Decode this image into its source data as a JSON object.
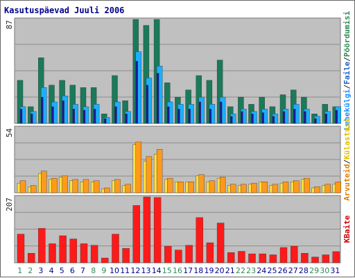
{
  "chart_data": {
    "type": "bar",
    "title": "Kasutuspäevad Juuli 2006",
    "categories": [
      "1",
      "2",
      "3",
      "4",
      "5",
      "6",
      "7",
      "8",
      "9",
      "10",
      "11",
      "12",
      "13",
      "14",
      "15",
      "16",
      "17",
      "18",
      "19",
      "20",
      "21",
      "22",
      "23",
      "24",
      "25",
      "26",
      "27",
      "28",
      "29",
      "30",
      "31"
    ],
    "weekend_days": [
      "1",
      "2",
      "8",
      "9",
      "15",
      "16",
      "22",
      "23",
      "29",
      "30"
    ],
    "colors": {
      "page_bg": "#ffffff",
      "panel_bg": "#c0c0c0",
      "grid": "#8c8c8c",
      "title": "#00008b",
      "weekday_tick": "#00008b",
      "weekend_tick": "#2e8b57"
    },
    "panels": [
      {
        "id": "top",
        "ymax_label": "87",
        "ylim": [
          0,
          87
        ],
        "series": [
          {
            "key": "pagesviewed",
            "color": "#1a7a5a",
            "values": [
              36,
              14,
              55,
              32,
              36,
              32,
              30,
              30,
              8,
              40,
              19,
              87,
              82,
              87,
              34,
              22,
              28,
              40,
              36,
              53,
              14,
              22,
              16,
              22,
              14,
              24,
              28,
              22,
              8,
              16,
              14
            ]
          },
          {
            "key": "files",
            "color": "#1ab0ff",
            "values": [
              14,
              10,
              30,
              18,
              23,
              16,
              14,
              16,
              5,
              18,
              10,
              60,
              38,
              48,
              18,
              16,
              16,
              22,
              16,
              22,
              8,
              12,
              10,
              12,
              8,
              12,
              16,
              12,
              6,
              10,
              14
            ]
          },
          {
            "key": "hits",
            "color": "#1a1a9a",
            "values": [
              12,
              8,
              22,
              14,
              19,
              12,
              11,
              12,
              4,
              14,
              8,
              52,
              32,
              42,
              14,
              12,
              12,
              18,
              12,
              18,
              6,
              10,
              8,
              9,
              6,
              10,
              12,
              10,
              4,
              8,
              11
            ]
          }
        ],
        "side_labels": [
          {
            "text": "Pöördumisi",
            "color": "#2e8b57"
          },
          {
            "text": "/",
            "color": "#222222"
          },
          {
            "text": "Faile",
            "color": "#1e60c8"
          },
          {
            "text": "/",
            "color": "#222222"
          },
          {
            "text": "Lehekülgi",
            "color": "#1e90ff"
          }
        ]
      },
      {
        "id": "middle",
        "ymax_label": "54",
        "ylim": [
          0,
          54
        ],
        "series": [
          {
            "key": "unique",
            "color": "#ffe040",
            "values": [
              8,
              5,
              16,
              11,
              13,
              10,
              9,
              9,
              3,
              10,
              6,
              40,
              26,
              32,
              11,
              9,
              9,
              14,
              9,
              12,
              6,
              6,
              7,
              9,
              6,
              8,
              9,
              11,
              4,
              6,
              7
            ]
          },
          {
            "key": "visits",
            "color": "#ff9a1a",
            "values": [
              10,
              6,
              18,
              12,
              14,
              11,
              11,
              10,
              4,
              11,
              7,
              42,
              30,
              36,
              12,
              9,
              9,
              15,
              10,
              13,
              7,
              7,
              8,
              9,
              7,
              9,
              10,
              12,
              5,
              7,
              9
            ]
          }
        ],
        "side_labels": [
          {
            "text": "Külastusi",
            "color": "#e0c000"
          },
          {
            "text": "/",
            "color": "#222222"
          },
          {
            "text": "Arvuteid",
            "color": "#e08000"
          }
        ]
      },
      {
        "id": "bottom",
        "ymax_label": "207",
        "ylim": [
          0,
          207
        ],
        "series": [
          {
            "key": "kbytes",
            "color": "#ff1a1a",
            "values": [
              90,
              30,
              108,
              60,
              85,
              75,
              60,
              55,
              15,
              90,
              45,
              180,
              207,
              205,
              52,
              40,
              55,
              142,
              63,
              125,
              32,
              36,
              28,
              28,
              25,
              48,
              52,
              30,
              18,
              25,
              35
            ]
          }
        ],
        "side_labels": [
          {
            "text": "KBaite",
            "color": "#d00000"
          }
        ]
      }
    ]
  }
}
